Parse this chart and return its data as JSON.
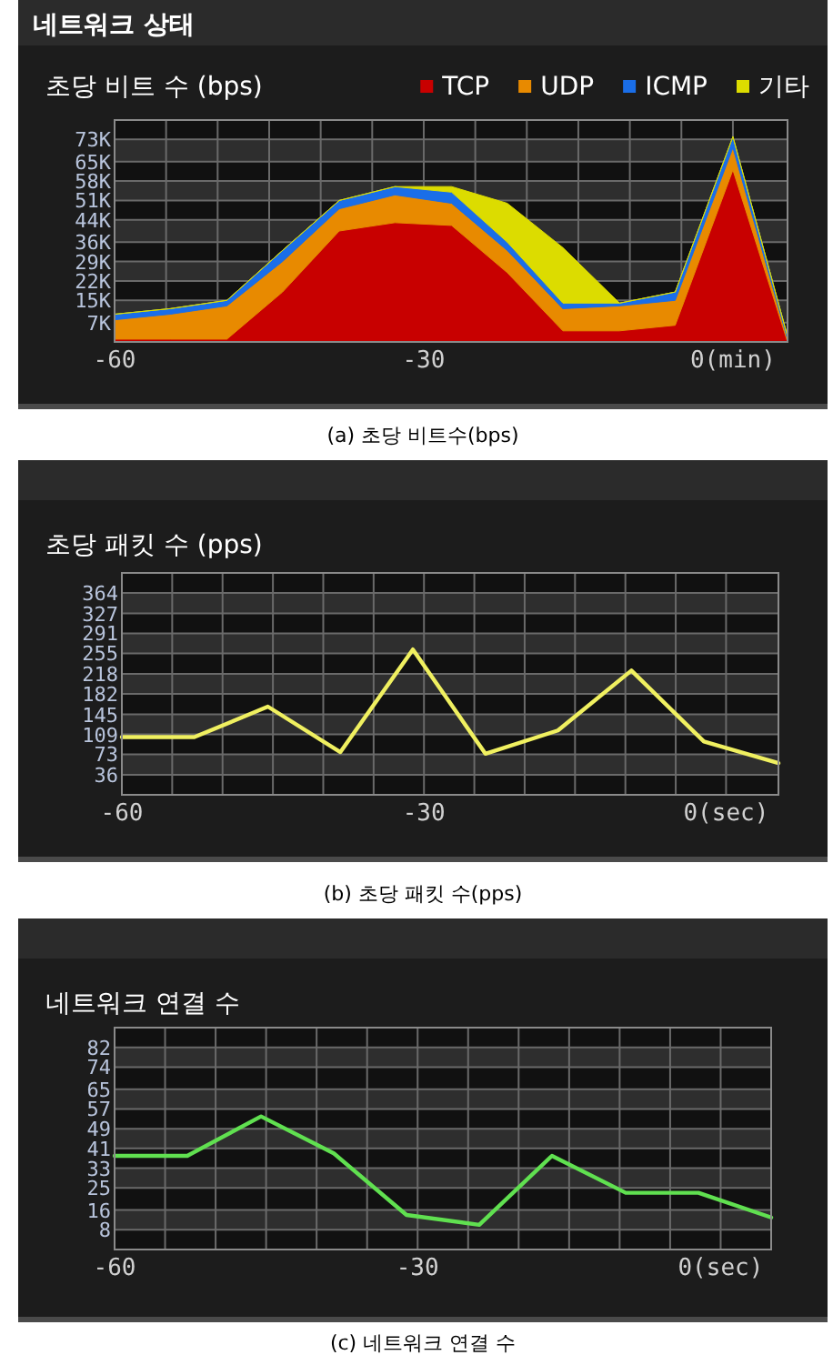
{
  "chart_data": [
    {
      "type": "area",
      "stacked": true,
      "title": "네트워크 상태",
      "subtitle": "초당 비트 수 (bps)",
      "annotations": [
        "(a) 초당 비트수(bps)"
      ],
      "x": [
        -60,
        -54.6,
        -49.1,
        -43.7,
        -38.2,
        -32.8,
        -27.3,
        -21.9,
        -16.5,
        -11.0,
        -5.6,
        0,
        5.3
      ],
      "series": [
        {
          "name": "TCP",
          "color": "#c80000",
          "values": [
            1,
            1,
            1,
            18,
            40,
            43,
            42,
            25,
            4,
            4,
            6,
            62,
            0
          ]
        },
        {
          "name": "UDP",
          "color": "#e88a00",
          "values": [
            7,
            9,
            12,
            11,
            8,
            10,
            8,
            8,
            8,
            9,
            9,
            8,
            1
          ]
        },
        {
          "name": "ICMP",
          "color": "#1a6ee8",
          "values": [
            2,
            2,
            2,
            4,
            3,
            3,
            4,
            3,
            2,
            1,
            3,
            4,
            1
          ]
        },
        {
          "name": "기타",
          "color": "#dcdc00",
          "values": [
            0,
            0,
            0,
            0,
            0,
            0,
            2,
            14,
            20,
            0,
            0,
            0,
            0
          ]
        }
      ],
      "xlim": [
        -60,
        5.3
      ],
      "xticks": [
        {
          "value": -60,
          "label": "-60"
        },
        {
          "value": -55,
          "label": null
        },
        {
          "value": -50,
          "label": null
        },
        {
          "value": -45,
          "label": null
        },
        {
          "value": -40,
          "label": null
        },
        {
          "value": -35,
          "label": null
        },
        {
          "value": -30,
          "label": "-30"
        },
        {
          "value": -25,
          "label": null
        },
        {
          "value": -20,
          "label": null
        },
        {
          "value": -15,
          "label": null
        },
        {
          "value": -10,
          "label": null
        },
        {
          "value": -5,
          "label": null
        },
        {
          "value": 0,
          "label": "0(min)"
        }
      ],
      "ylim": [
        0,
        80
      ],
      "yticks": [
        {
          "value": 7,
          "label": "7K"
        },
        {
          "value": 15,
          "label": "15K"
        },
        {
          "value": 22,
          "label": "22K"
        },
        {
          "value": 29,
          "label": "29K"
        },
        {
          "value": 36,
          "label": "36K"
        },
        {
          "value": 44,
          "label": "44K"
        },
        {
          "value": 51,
          "label": "51K"
        },
        {
          "value": 58,
          "label": "58K"
        },
        {
          "value": 65,
          "label": "65K"
        },
        {
          "value": 73,
          "label": "73K"
        }
      ],
      "grid": true,
      "legend": "top"
    },
    {
      "type": "line",
      "title": "초당 패킷 수 (pps)",
      "annotations": [
        "(b) 초당 패킷 수(pps)"
      ],
      "x": [
        -60,
        -52.8,
        -45.5,
        -38.3,
        -31.1,
        -23.9,
        -16.7,
        -9.4,
        -2.2,
        5.2
      ],
      "series": [
        {
          "color": "#f0f060",
          "values": [
            104,
            104,
            159,
            77,
            262,
            74,
            116,
            224,
            96,
            57
          ]
        }
      ],
      "xlim": [
        -60,
        5.2
      ],
      "xticks": [
        {
          "value": -60,
          "label": "-60"
        },
        {
          "value": -55,
          "label": null
        },
        {
          "value": -50,
          "label": null
        },
        {
          "value": -45,
          "label": null
        },
        {
          "value": -40,
          "label": null
        },
        {
          "value": -35,
          "label": null
        },
        {
          "value": -30,
          "label": "-30"
        },
        {
          "value": -25,
          "label": null
        },
        {
          "value": -20,
          "label": null
        },
        {
          "value": -15,
          "label": null
        },
        {
          "value": -10,
          "label": null
        },
        {
          "value": -5,
          "label": null
        },
        {
          "value": 0,
          "label": "0(sec)"
        }
      ],
      "ylim": [
        0,
        400
      ],
      "yticks": [
        36,
        73,
        109,
        145,
        182,
        218,
        255,
        291,
        327,
        364
      ],
      "grid": true
    },
    {
      "type": "line",
      "title": "네트워크 연결 수",
      "annotations": [
        "(c) 네트워크 연결 수"
      ],
      "x": [
        -60,
        -52.8,
        -45.5,
        -38.3,
        -31.1,
        -23.9,
        -16.7,
        -9.4,
        -2.2,
        5
      ],
      "series": [
        {
          "color": "#60e050",
          "values": [
            38,
            38,
            54,
            39,
            14,
            10,
            38,
            23,
            23,
            13
          ]
        }
      ],
      "xlim": [
        -60,
        5
      ],
      "xticks": [
        {
          "value": -60,
          "label": "-60"
        },
        {
          "value": -55,
          "label": null
        },
        {
          "value": -50,
          "label": null
        },
        {
          "value": -45,
          "label": null
        },
        {
          "value": -40,
          "label": null
        },
        {
          "value": -35,
          "label": null
        },
        {
          "value": -30,
          "label": "-30"
        },
        {
          "value": -25,
          "label": null
        },
        {
          "value": -20,
          "label": null
        },
        {
          "value": -15,
          "label": null
        },
        {
          "value": -10,
          "label": null
        },
        {
          "value": -5,
          "label": null
        },
        {
          "value": 0,
          "label": "0(sec)"
        }
      ],
      "ylim": [
        0,
        90
      ],
      "yticks": [
        8,
        16,
        25,
        33,
        41,
        49,
        57,
        65,
        74,
        82
      ],
      "grid": true
    }
  ]
}
